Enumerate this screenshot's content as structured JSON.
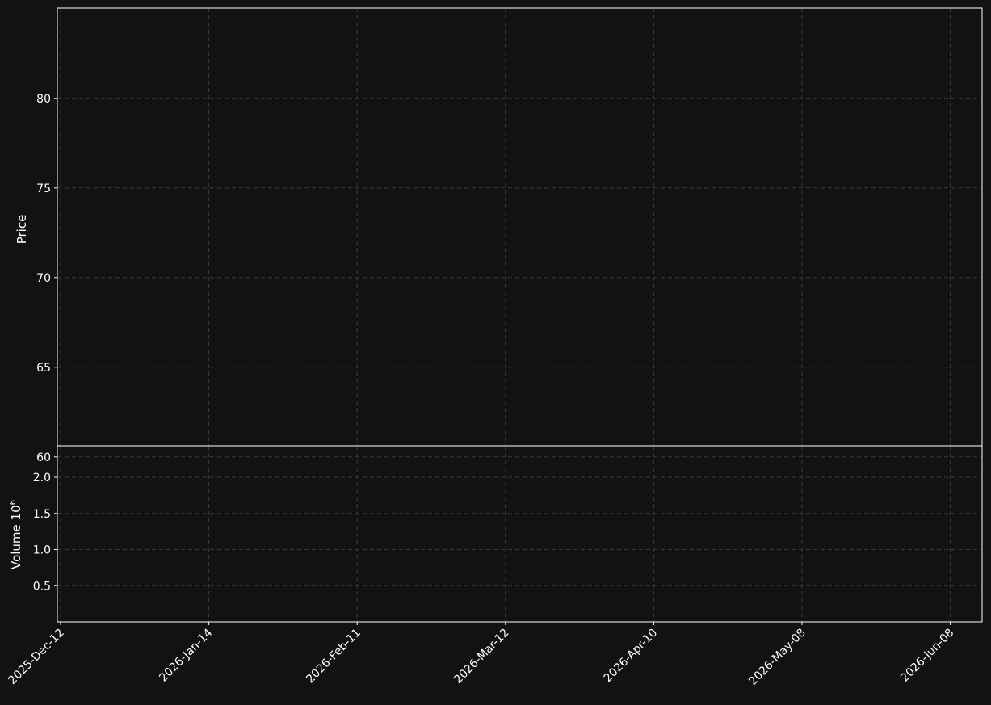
{
  "chart_data": {
    "type": "candlestick",
    "price_panel": {
      "ylabel": "Price",
      "yticks": [
        60,
        65,
        70,
        75,
        80
      ],
      "ylim": [
        58.2,
        82.5
      ],
      "grid": true
    },
    "volume_panel": {
      "ylabel": "Volume  10",
      "ylabel_exponent": "6",
      "yticks": [
        0.5,
        1.0,
        1.5,
        2.0
      ],
      "ytick_labels": [
        "0.5",
        "1.0",
        "1.5",
        "2.0"
      ],
      "ylim": [
        0,
        2.3
      ],
      "grid": true
    },
    "xticks": [
      {
        "index": 0,
        "label": "2025-Dec-12"
      },
      {
        "index": 20,
        "label": "2026-Jan-14"
      },
      {
        "index": 40,
        "label": "2026-Feb-11"
      },
      {
        "index": 60,
        "label": "2026-Mar-12"
      },
      {
        "index": 80,
        "label": "2026-Apr-10"
      },
      {
        "index": 100,
        "label": "2026-May-08"
      },
      {
        "index": 120,
        "label": "2026-Jun-08"
      }
    ],
    "colors": {
      "up": "#00e676",
      "down": "#ff4d4d",
      "ma_short": "#4dd8d8",
      "ma_long": "#00e5ff",
      "bollinger": "#ffa500",
      "background": "#121212"
    },
    "series": [],
    "ohlc": [],
    "volume": []
  }
}
